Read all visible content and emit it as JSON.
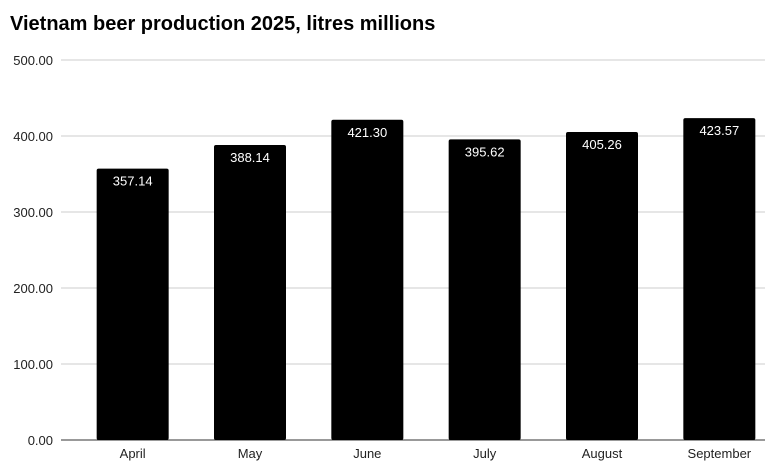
{
  "chart_data": {
    "type": "bar",
    "title": "Vietnam beer production 2025, litres millions",
    "categories": [
      "April",
      "May",
      "June",
      "July",
      "August",
      "September"
    ],
    "values": [
      357.14,
      388.14,
      421.3,
      395.62,
      405.26,
      423.57
    ],
    "data_labels": [
      "357.14",
      "388.14",
      "421.30",
      "395.62",
      "405.26",
      "423.57"
    ],
    "xlabel": "",
    "ylabel": "",
    "ylim": [
      0,
      500
    ],
    "yticks": [
      "0.00",
      "100.00",
      "200.00",
      "300.00",
      "400.00",
      "500.00"
    ],
    "grid": true,
    "legend": "none",
    "bar_color": "#000000",
    "grid_color": "#cccccc"
  }
}
